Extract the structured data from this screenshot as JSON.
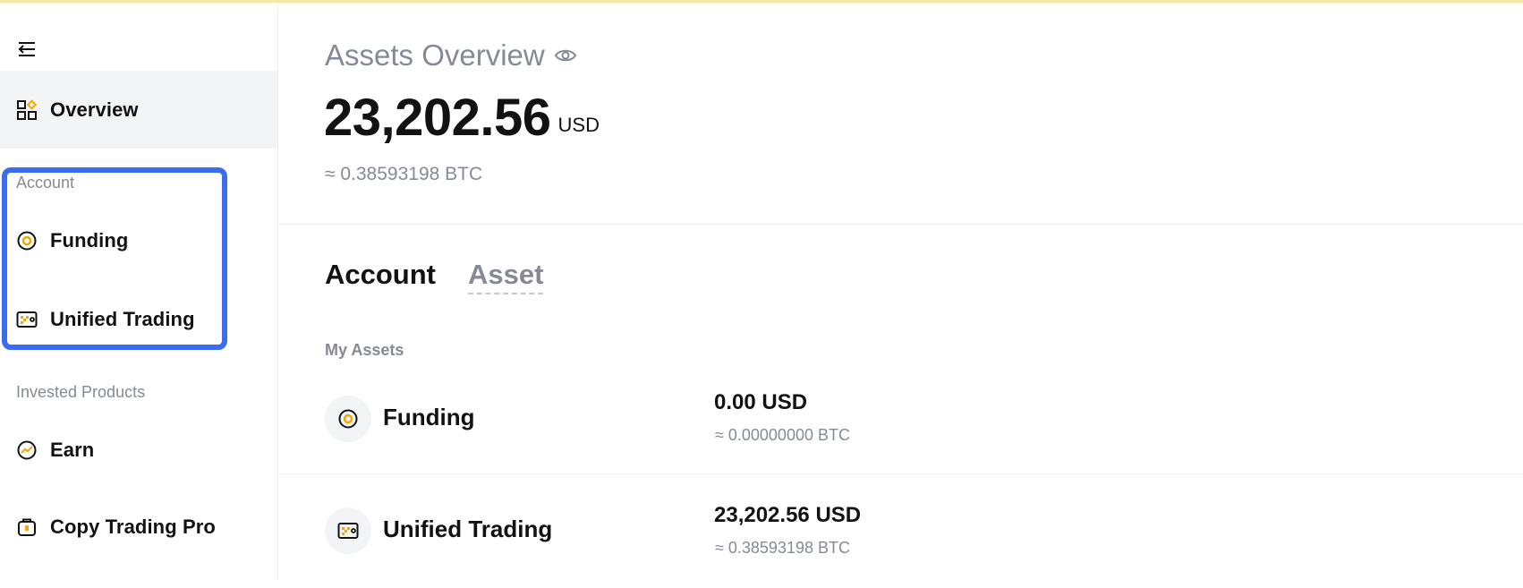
{
  "sidebar": {
    "collapse_icon": "collapse-left-icon",
    "overview": {
      "label": "Overview",
      "icon": "overview-grid-icon"
    },
    "account_section": "Account",
    "account_items": [
      {
        "label": "Funding",
        "icon": "funding-coin-icon"
      },
      {
        "label": "Unified Trading",
        "icon": "unified-trading-icon"
      }
    ],
    "invested_section": "Invested Products",
    "invested_items": [
      {
        "label": "Earn",
        "icon": "earn-icon"
      },
      {
        "label": "Copy Trading Pro",
        "icon": "copy-trading-icon"
      }
    ]
  },
  "overview": {
    "title": "Assets Overview",
    "balance": "23,202.56",
    "currency": "USD",
    "btc_approx": "≈ 0.38593198 BTC"
  },
  "tabs": [
    {
      "label": "Account",
      "active": true
    },
    {
      "label": "Asset",
      "active": false
    }
  ],
  "my_assets": {
    "label": "My Assets",
    "rows": [
      {
        "name": "Funding",
        "amount": "0.00 USD",
        "btc": "≈ 0.00000000 BTC",
        "icon": "funding-coin-icon"
      },
      {
        "name": "Unified Trading",
        "amount": "23,202.56 USD",
        "btc": "≈ 0.38593198 BTC",
        "icon": "unified-trading-icon"
      }
    ]
  },
  "colors": {
    "accent": "#f7a600",
    "highlight": "#3a6cf0",
    "muted": "#858a96",
    "text": "#121214"
  }
}
